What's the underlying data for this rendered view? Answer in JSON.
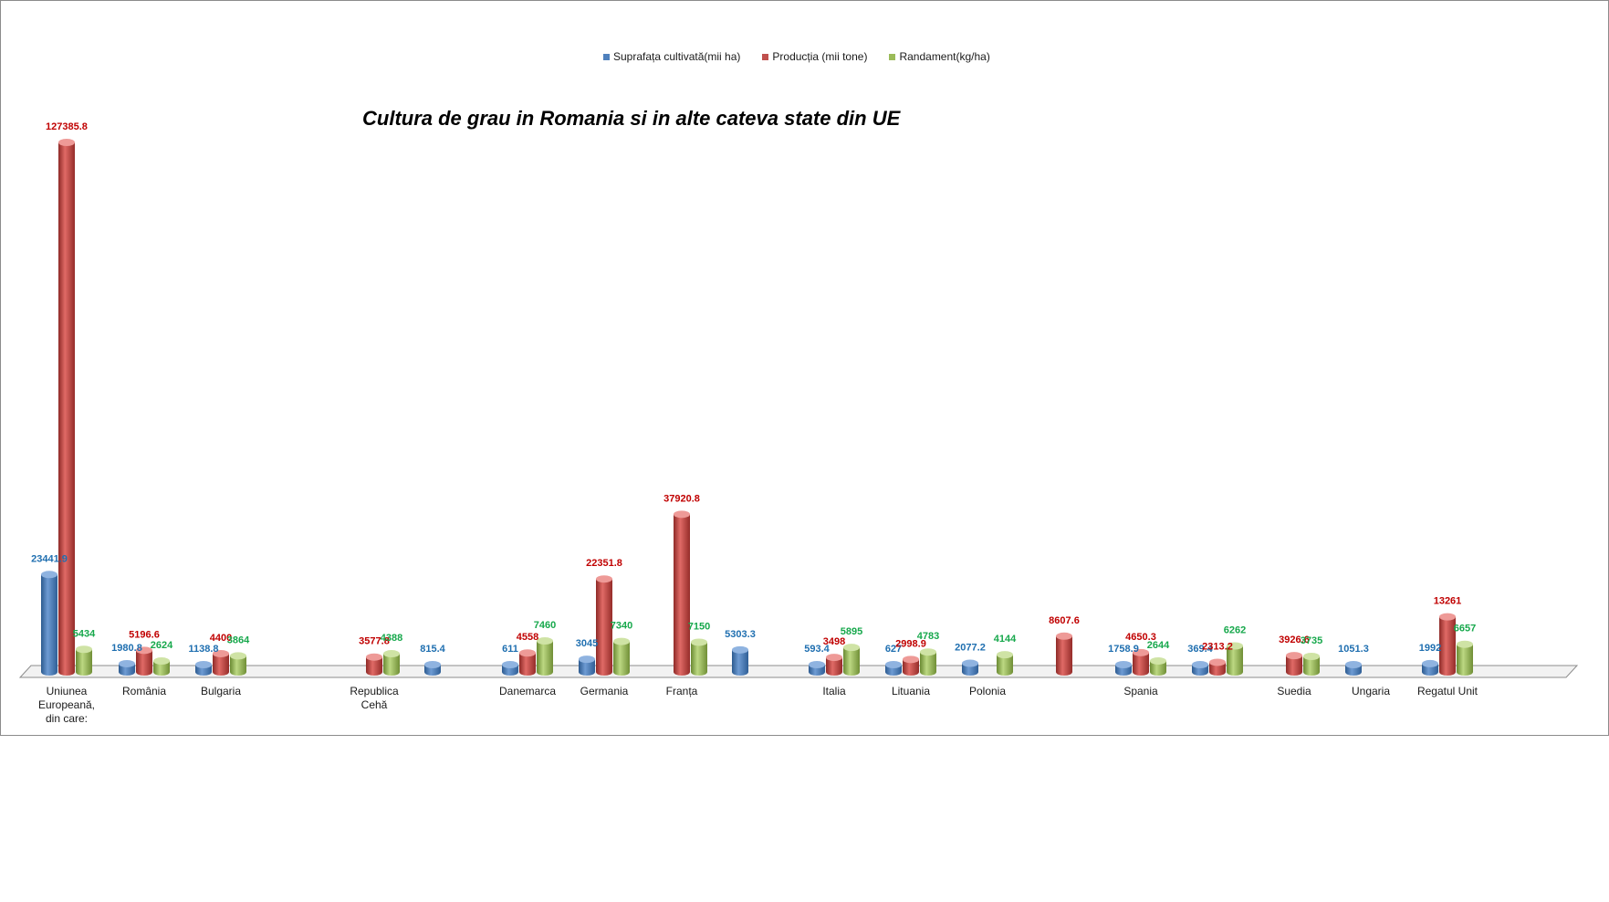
{
  "chart_data": {
    "type": "bar",
    "title": "Cultura de grau in Romania si in alte cateva state din UE",
    "legend_position": "top-center",
    "grid": false,
    "colors": {
      "suprafata": "#4f81bd",
      "productia": "#c0504d",
      "randament": "#9bbb59",
      "label_suprafata": "#1f6fb0",
      "label_productia": "#c00000",
      "label_randament": "#17a84c"
    },
    "categories": [
      "Uniunea Europeană, din care:",
      "România",
      "Bulgaria",
      "",
      "Republica Cehă",
      "",
      "Danemarca",
      "Germania",
      "Franța",
      "",
      "Italia",
      "Lituania",
      "Polonia",
      "",
      "Spania",
      "",
      "Suedia",
      "Ungaria",
      "Regatul Unit"
    ],
    "series": [
      {
        "key": "suprafata",
        "name": "Suprafața cultivată(mii ha)",
        "values": [
          23441.9,
          1980.8,
          1138.8,
          null,
          null,
          815.4,
          611,
          3045,
          null,
          5303.3,
          593.4,
          627,
          2077.2,
          null,
          1758.9,
          369.4,
          null,
          1051.3,
          1992
        ],
        "labels": [
          "23441.9",
          "1980.8",
          "1138.8",
          "",
          "",
          "815.4",
          "611",
          "3045",
          "",
          "5303.3",
          "593.4",
          "627",
          "2077.2",
          "",
          "1758.9",
          "369.4",
          "",
          "1051.3",
          "1992"
        ]
      },
      {
        "key": "productia",
        "name": "Producția (mii tone)",
        "values": [
          127385.8,
          5196.6,
          4400,
          null,
          3577.8,
          null,
          4558,
          22351.8,
          37920.8,
          null,
          3498,
          2998.9,
          null,
          8607.6,
          4650.3,
          2313.2,
          3926.6,
          null,
          13261
        ],
        "labels": [
          "127385.8",
          "5196.6",
          "4400",
          "",
          "3577.8",
          "",
          "4558",
          "22351.8",
          "37920.8",
          "",
          "3498",
          "2998.9",
          "",
          "8607.6",
          "4650.3",
          "2313.2",
          "3926.6",
          "",
          "13261"
        ]
      },
      {
        "key": "randament",
        "name": "Randament(kg/ha)",
        "values": [
          5434,
          2624,
          3864,
          null,
          4388,
          null,
          7460,
          7340,
          7150,
          null,
          5895,
          4783,
          4144,
          null,
          2644,
          6262,
          3735,
          null,
          6657
        ],
        "labels": [
          "5434",
          "2624",
          "3864",
          "",
          "4388",
          "",
          "7460",
          "7340",
          "7150",
          "",
          "5895",
          "4783",
          "4144",
          "",
          "2644",
          "6262",
          "3735",
          "",
          "6657"
        ]
      }
    ]
  }
}
